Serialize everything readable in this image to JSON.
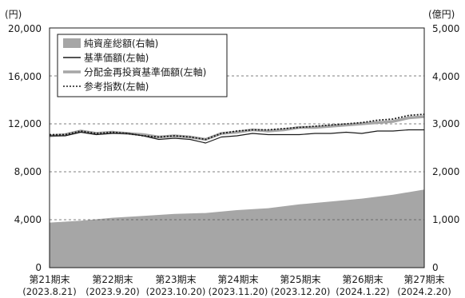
{
  "chart_data": {
    "type": "line",
    "left_axis": {
      "unit": "(円)",
      "ticks": [
        "20,000",
        "16,000",
        "12,000",
        "8,000",
        "4,000",
        "0"
      ],
      "ylim": [
        0,
        20000
      ]
    },
    "right_axis": {
      "unit": "(億円)",
      "ticks": [
        "5,000",
        "4,000",
        "3,000",
        "2,000",
        "1,000",
        "0"
      ],
      "ylim": [
        0,
        5000
      ]
    },
    "gridlines": {
      "style": "dashed",
      "values": [
        4000,
        8000,
        12000,
        16000
      ]
    },
    "legend_position": "top-left",
    "x_tick_labels": [
      {
        "line1": "第21期末",
        "line2": "(2023.8.21)"
      },
      {
        "line1": "第22期末",
        "line2": "(2023.9.20)"
      },
      {
        "line1": "第23期末",
        "line2": "(2023.10.20)"
      },
      {
        "line1": "第24期末",
        "line2": "(2023.11.20)"
      },
      {
        "line1": "第25期末",
        "line2": "(2023.12.20)"
      },
      {
        "line1": "第26期末",
        "line2": "(2024.1.22)"
      },
      {
        "line1": "第27期末",
        "line2": "(2024.2.20)"
      }
    ],
    "x_domain": [
      0,
      6
    ],
    "series": [
      {
        "name": "純資産総額(右軸)",
        "type": "area",
        "axis": "right",
        "color": "#a6a6a6",
        "x": [
          0,
          0.5,
          1,
          1.5,
          2,
          2.5,
          3,
          3.5,
          4,
          4.5,
          5,
          5.5,
          6
        ],
        "values": [
          940,
          980,
          1040,
          1080,
          1120,
          1140,
          1200,
          1240,
          1320,
          1380,
          1440,
          1520,
          1630
        ]
      },
      {
        "name": "基準価額(左軸)",
        "type": "line",
        "axis": "left",
        "color": "#1a1a1a",
        "x": [
          0,
          0.25,
          0.5,
          0.75,
          1,
          1.25,
          1.5,
          1.75,
          2,
          2.25,
          2.5,
          2.75,
          3,
          3.25,
          3.5,
          3.75,
          4,
          4.25,
          4.5,
          4.75,
          5,
          5.25,
          5.5,
          5.75,
          6
        ],
        "values": [
          11000,
          11000,
          11300,
          11100,
          11200,
          11200,
          11000,
          10700,
          10800,
          10700,
          10400,
          10900,
          11000,
          11200,
          11100,
          11100,
          11100,
          11200,
          11200,
          11300,
          11200,
          11400,
          11400,
          11500,
          11500
        ]
      },
      {
        "name": "分配金再投資基準価額(左軸)",
        "type": "line",
        "axis": "left",
        "color": "#a6a6a6",
        "x": [
          0,
          0.25,
          0.5,
          0.75,
          1,
          1.25,
          1.5,
          1.75,
          2,
          2.25,
          2.5,
          2.75,
          3,
          3.25,
          3.5,
          3.75,
          4,
          4.25,
          4.5,
          4.75,
          5,
          5.25,
          5.5,
          5.75,
          6
        ],
        "values": [
          11000,
          11100,
          11400,
          11200,
          11300,
          11200,
          11100,
          10900,
          11000,
          10900,
          10700,
          11200,
          11300,
          11500,
          11400,
          11500,
          11700,
          11700,
          11800,
          11900,
          12000,
          12100,
          12200,
          12500,
          12600
        ]
      },
      {
        "name": "参考指数(左軸)",
        "type": "line",
        "axis": "left",
        "style": "dotted",
        "color": "#1a1a1a",
        "x": [
          0,
          0.25,
          0.5,
          0.75,
          1,
          1.25,
          1.5,
          1.75,
          2,
          2.25,
          2.5,
          2.75,
          3,
          3.25,
          3.5,
          3.75,
          4,
          4.25,
          4.5,
          4.75,
          5,
          5.25,
          5.5,
          5.75,
          6
        ],
        "values": [
          11100,
          11100,
          11400,
          11200,
          11300,
          11200,
          11000,
          10900,
          11000,
          10900,
          10700,
          11200,
          11400,
          11500,
          11500,
          11600,
          11700,
          11800,
          11900,
          12000,
          12100,
          12300,
          12400,
          12700,
          12800
        ]
      }
    ]
  }
}
